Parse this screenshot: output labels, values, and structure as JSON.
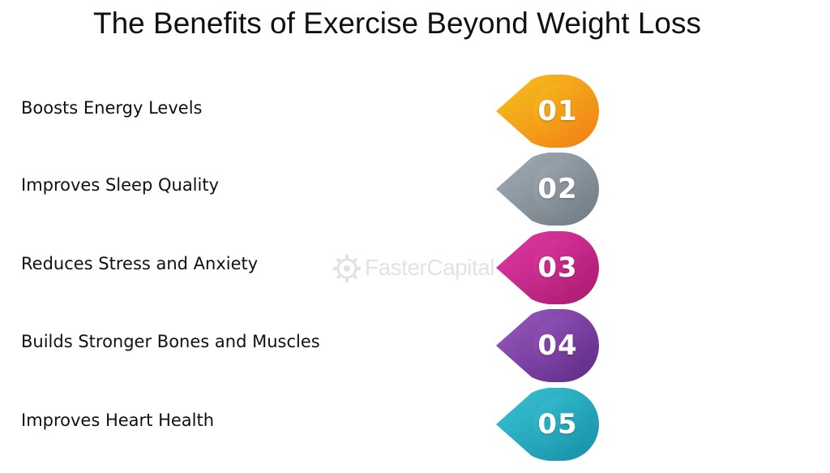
{
  "title": "The Benefits of Exercise Beyond Weight Loss",
  "watermark": "FasterCapital",
  "items": [
    {
      "label": "Boosts Energy Levels",
      "number": "01",
      "color_light": "#F7C21E",
      "color_dark": "#F07F14"
    },
    {
      "label": "Improves Sleep Quality",
      "number": "02",
      "color_light": "#A4AEB6",
      "color_dark": "#6F7A84"
    },
    {
      "label": "Reduces Stress and Anxiety",
      "number": "03",
      "color_light": "#E33AA4",
      "color_dark": "#A8196F"
    },
    {
      "label": "Builds Stronger Bones and Muscles",
      "number": "04",
      "color_light": "#9B5AC0",
      "color_dark": "#5E2A86"
    },
    {
      "label": "Improves Heart Health",
      "number": "05",
      "color_light": "#3BC4D6",
      "color_dark": "#168FA5"
    }
  ]
}
